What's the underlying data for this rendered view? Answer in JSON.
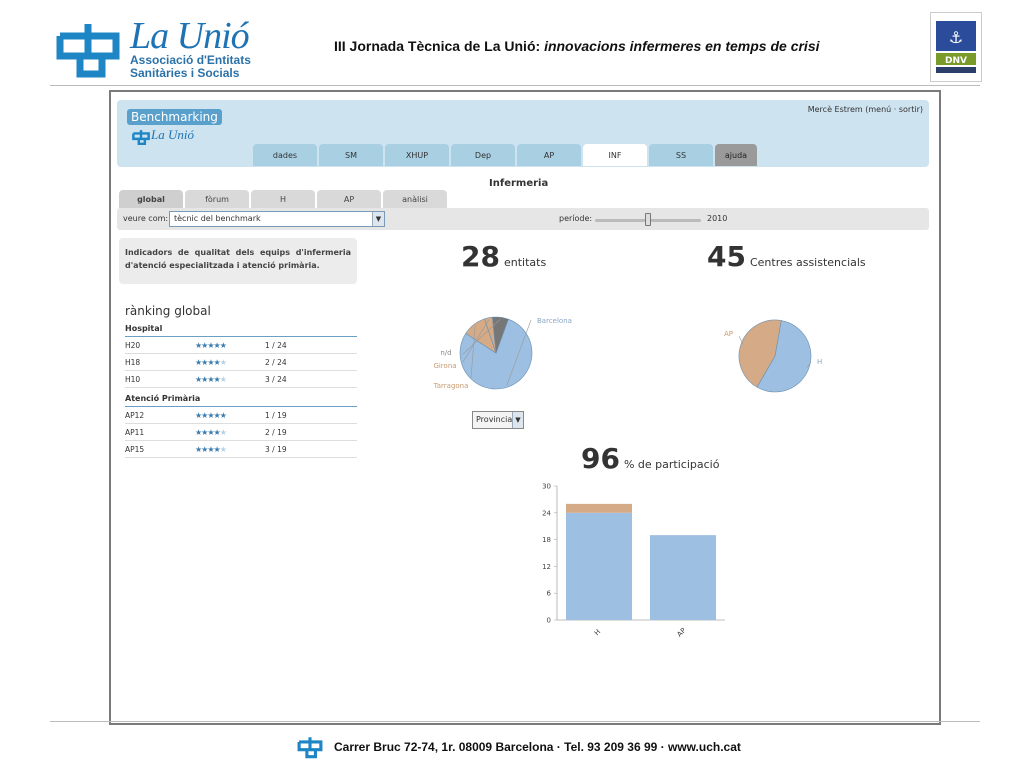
{
  "slide": {
    "org_name": "La Unió",
    "org_sub": [
      "Associació d'Entitats",
      "Sanitàries i Socials"
    ],
    "title_plain": "III Jornada Tècnica de La Unió: ",
    "title_italic": "innovacions infermeres en temps de crisi",
    "cert_logo": "DNV",
    "footer": "Carrer Bruc 72-74, 1r. 08009 Barcelona · Tel. 93  209 36 99 · www.uch.cat"
  },
  "app": {
    "logo_text": "Benchmarking",
    "logo_sub": "La Unió",
    "user": "Mercè Estrem  (menú · sortir)",
    "main_tabs": [
      "dades",
      "SM",
      "XHUP",
      "Dep",
      "AP",
      "INF",
      "SS",
      "ajuda"
    ],
    "active_main_tab": "INF",
    "section_title": "Infermeria",
    "sub_tabs": [
      "global",
      "fòrum",
      "H",
      "AP",
      "anàlisi"
    ],
    "active_sub_tab": "global",
    "filter_label": "veure com:",
    "filter_value": "tècnic del benchmark",
    "period_label": "període:",
    "period_value": "2010",
    "period_fraction": 0.5,
    "description": "Indicadors de qualitat dels equips d'infermeria d'atenció especialitzada i atenció primària.",
    "ranking": {
      "title": "rànking global",
      "groups": [
        {
          "title": "Hospital",
          "rows": [
            {
              "name": "H20",
              "rating": 5,
              "position": "1 / 24"
            },
            {
              "name": "H18",
              "rating": 4.5,
              "position": "2 / 24"
            },
            {
              "name": "H10",
              "rating": 4.5,
              "position": "3 / 24"
            }
          ]
        },
        {
          "title": "Atenció Primària",
          "rows": [
            {
              "name": "AP12",
              "rating": 5,
              "position": "1 / 19"
            },
            {
              "name": "AP11",
              "rating": 4.5,
              "position": "2 / 19"
            },
            {
              "name": "AP15",
              "rating": 4,
              "position": "3 / 19"
            }
          ]
        }
      ]
    },
    "stat_entities": {
      "value": "28",
      "label": "entitats"
    },
    "stat_centres": {
      "value": "45",
      "label": "Centres assistencials"
    },
    "province_select": "Provincia",
    "participation": {
      "value": "96",
      "label": "% de participació"
    },
    "colors": {
      "blue": "#9dbfe2",
      "tan": "#d4ab86",
      "grey": "#777777"
    }
  },
  "chart_data": [
    {
      "type": "pie",
      "labels": [
        "Barcelona",
        "Tarragona",
        "Girona",
        "n/d"
      ],
      "values": [
        22,
        3,
        1,
        2
      ]
    },
    {
      "type": "pie",
      "labels": [
        "H",
        "AP"
      ],
      "values": [
        25,
        20
      ]
    },
    {
      "type": "bar",
      "categories": [
        "H",
        "AP"
      ],
      "series": [
        {
          "values": [
            24,
            19
          ]
        },
        {
          "values": [
            2,
            0
          ]
        }
      ],
      "stacked": true,
      "ylim": [
        0,
        30
      ],
      "yticks": [
        0,
        6,
        12,
        18,
        24,
        30
      ]
    }
  ]
}
